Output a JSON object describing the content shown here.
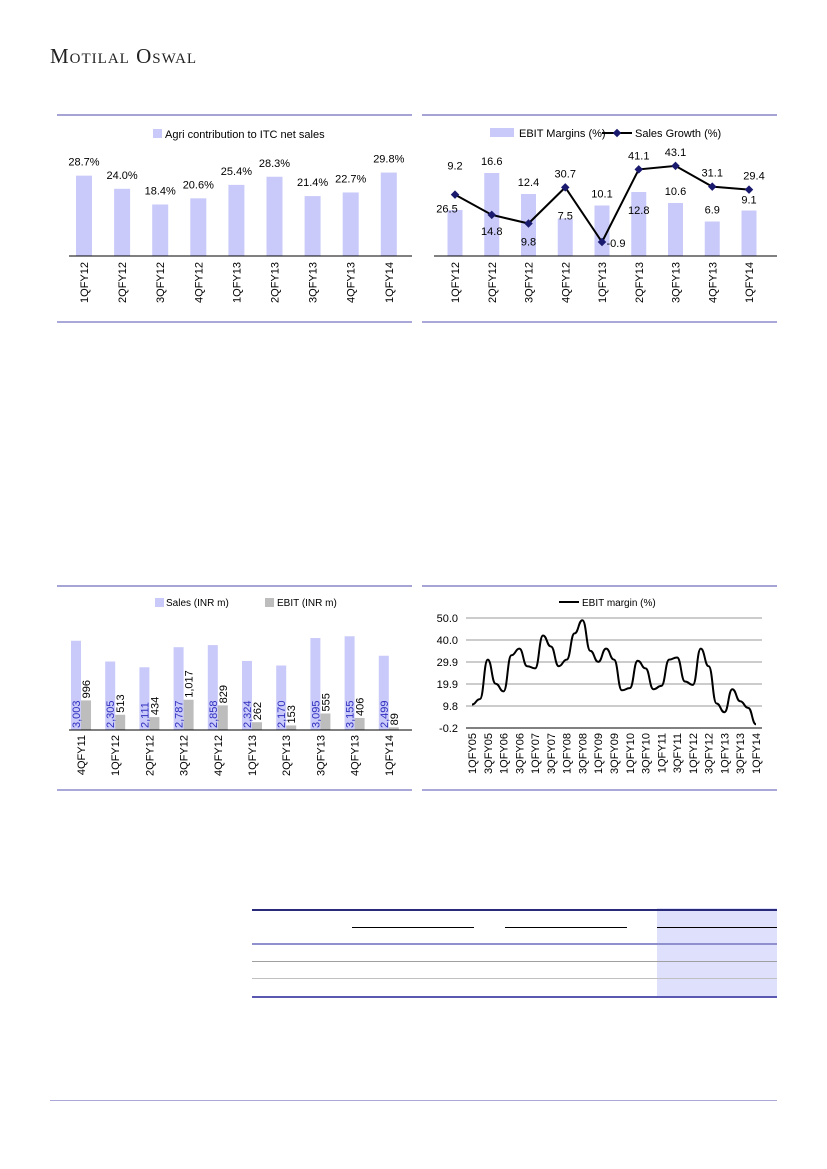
{
  "header": {
    "brand": "Motilal Oswal"
  },
  "colors": {
    "bar": "#c9caf9",
    "bar_gray": "#bdbdbd",
    "line": "#000000",
    "marker": "#1a1a6e",
    "rule": "#4c4aa8",
    "label_blue": "#2f2fbf"
  },
  "chart_data": [
    {
      "type": "bar",
      "title": "",
      "legend": [
        "Agri contribution  to ITC net sales"
      ],
      "legend_position": "top",
      "categories": [
        "1QFY12",
        "2QFY12",
        "3QFY12",
        "4QFY12",
        "1QFY13",
        "2QFY13",
        "3QFY13",
        "4QFY13",
        "1QFY14"
      ],
      "values": [
        28.7,
        24.0,
        18.4,
        20.6,
        25.4,
        28.3,
        21.4,
        22.7,
        29.8
      ],
      "labels": [
        "28.7%",
        "24.0%",
        "18.4%",
        "20.6%",
        "25.4%",
        "28.3%",
        "21.4%",
        "22.7%",
        "29.8%"
      ],
      "ylim": [
        0,
        35
      ]
    },
    {
      "type": "bar+line",
      "legend": [
        "EBIT Margins (%)",
        "Sales Growth (%)"
      ],
      "legend_position": "top",
      "categories": [
        "1QFY12",
        "2QFY12",
        "3QFY12",
        "4QFY12",
        "1QFY13",
        "2QFY13",
        "3QFY13",
        "4QFY13",
        "1QFY14"
      ],
      "series": [
        {
          "name": "EBIT Margins (%)",
          "type": "bar",
          "values": [
            9.2,
            16.6,
            12.4,
            7.5,
            10.1,
            12.8,
            10.6,
            6.9,
            9.1
          ],
          "labels": [
            "9.2",
            "16.6",
            "12.4",
            "7.5",
            "10.1",
            "12.8",
            "10.6",
            "6.9",
            "9.1"
          ],
          "ylim": [
            0,
            20
          ]
        },
        {
          "name": "Sales Growth (%)",
          "type": "line",
          "values": [
            26.5,
            14.8,
            9.8,
            30.7,
            -0.9,
            41.1,
            43.1,
            31.1,
            29.4
          ],
          "labels": [
            "26.5",
            "14.8",
            "9.8",
            "30.7",
            "-0.9",
            "41.1",
            "43.1",
            "31.1",
            "29.4"
          ],
          "ylim": [
            -9,
            50
          ]
        }
      ]
    },
    {
      "type": "grouped-bar",
      "legend": [
        "Sales (INR m)",
        "EBIT (INR m)"
      ],
      "legend_position": "top",
      "categories": [
        "4QFY11",
        "1QFY12",
        "2QFY12",
        "3QFY12",
        "4QFY12",
        "1QFY13",
        "2QFY13",
        "3QFY13",
        "4QFY13",
        "1QFY14"
      ],
      "series": [
        {
          "name": "Sales (INR m)",
          "values": [
            3003,
            2305,
            2111,
            2787,
            2858,
            2324,
            2170,
            3095,
            3155,
            2499
          ],
          "labels": [
            "3,003",
            "2,305",
            "2,111",
            "2,787",
            "2,858",
            "2,324",
            "2,170",
            "3,095",
            "3,155",
            "2,499"
          ]
        },
        {
          "name": "EBIT (INR m)",
          "values": [
            996,
            513,
            434,
            1017,
            829,
            262,
            153,
            555,
            406,
            89
          ],
          "labels": [
            "996",
            "513",
            "434",
            "1,017",
            "829",
            "262",
            "153",
            "555",
            "406",
            "89"
          ]
        }
      ],
      "ylim": [
        0,
        3500
      ]
    },
    {
      "type": "line",
      "legend": [
        "EBIT margin (%)"
      ],
      "legend_position": "top",
      "x_tick_labels": [
        "1QFY05",
        "3QFY05",
        "1QFY06",
        "3QFY06",
        "1QFY07",
        "3QFY07",
        "1QFY08",
        "3QFY08",
        "1QFY09",
        "3QFY09",
        "1QFY10",
        "3QFY10",
        "1QFY11",
        "3QFY11",
        "1QFY12",
        "3QFY12",
        "1QFY13",
        "3QFY13",
        "1QFY14"
      ],
      "y_tick_labels": [
        "50.0",
        "40.0",
        "29.9",
        "19.9",
        "9.8",
        "-0.2"
      ],
      "values": [
        10.5,
        13,
        31,
        20,
        16.5,
        33,
        36,
        28,
        27,
        42,
        37,
        28,
        31,
        43,
        49,
        35,
        30,
        36,
        31,
        17,
        18,
        30.5,
        27,
        17.5,
        19,
        31,
        32,
        21,
        19.5,
        36,
        28,
        11,
        7,
        17.5,
        12,
        9,
        1.5
      ],
      "ylim": [
        -0.2,
        50.0
      ],
      "grid": true
    }
  ]
}
